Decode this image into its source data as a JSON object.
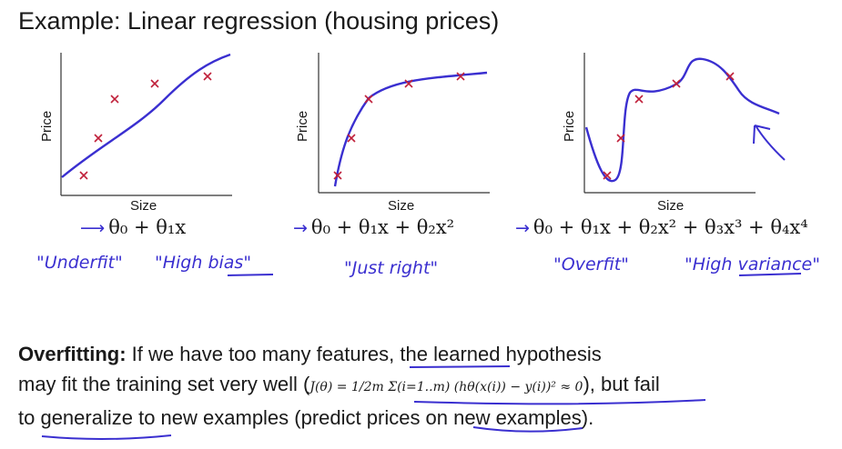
{
  "slide": {
    "title": "Example: Linear regression (housing prices)"
  },
  "chart_data": [
    {
      "type": "scatter",
      "xlabel": "Size",
      "ylabel": "Price",
      "points": [
        [
          0.15,
          0.15
        ],
        [
          0.24,
          0.44
        ],
        [
          0.36,
          0.77
        ],
        [
          0.57,
          0.84
        ],
        [
          0.86,
          0.91
        ]
      ],
      "fit": "linear",
      "formula": "θ₀ + θ₁x",
      "annotations": [
        "\"Underfit\"",
        "\"High bias\""
      ]
    },
    {
      "type": "scatter",
      "xlabel": "Size",
      "ylabel": "Price",
      "points": [
        [
          0.08,
          0.15
        ],
        [
          0.17,
          0.45
        ],
        [
          0.27,
          0.77
        ],
        [
          0.49,
          0.84
        ],
        [
          0.76,
          0.9
        ]
      ],
      "fit": "quadratic",
      "formula": "θ₀ + θ₁x + θ₂x²",
      "annotations": [
        "\"Just right\""
      ]
    },
    {
      "type": "scatter",
      "xlabel": "Size",
      "ylabel": "Price",
      "points": [
        [
          0.14,
          0.16
        ],
        [
          0.22,
          0.44
        ],
        [
          0.34,
          0.77
        ],
        [
          0.54,
          0.84
        ],
        [
          0.83,
          0.91
        ]
      ],
      "fit": "quartic",
      "formula": "θ₀ + θ₁x + θ₂x² + θ₃x³ + θ₄x⁴",
      "annotations": [
        "\"Overfit\"",
        "\"High variance\""
      ]
    }
  ],
  "paragraph": {
    "term": "Overfitting:",
    "line1": " If we have too many features, the learned hypothesis",
    "line2a": "may fit the training set very well (",
    "formula": "J(θ) = 1/2m Σ(i=1..m) (hθ(x(i)) − y(i))² ≈ 0",
    "line2b": "), but fail",
    "line3": "to generalize to new examples (predict prices on new examples)."
  },
  "colors": {
    "ink": "#3a2fd0",
    "marker": "#c0203a",
    "text": "#1a1a1a"
  }
}
